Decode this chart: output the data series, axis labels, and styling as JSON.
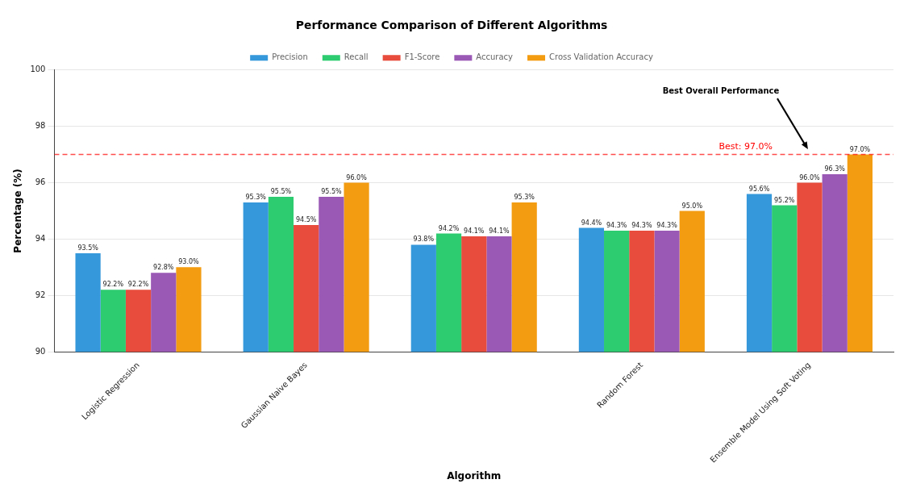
{
  "chart_data": {
    "type": "bar",
    "title": "Performance Comparison of Different Algorithms",
    "xlabel": "Algorithm",
    "ylabel": "Percentage (%)",
    "categories": [
      "Logistic Regression",
      "Gaussian Naive Bayes",
      null,
      "Random Forest",
      "Ensemble Model Using Soft Voting"
    ],
    "series": [
      {
        "name": "Precision",
        "color": "#3498db",
        "values": [
          93.5,
          95.3,
          93.8,
          94.4,
          95.6
        ],
        "value_labels": [
          "93.5%",
          "95.3%",
          "93.8%",
          "94.4%",
          "95.6%"
        ]
      },
      {
        "name": "Recall",
        "color": "#2ecc71",
        "values": [
          92.2,
          95.5,
          94.2,
          94.3,
          95.2
        ],
        "value_labels": [
          "92.2%",
          "95.5%",
          "94.2%",
          "94.3%",
          "95.2%"
        ]
      },
      {
        "name": "F1-Score",
        "color": "#e74c3c",
        "values": [
          92.2,
          94.5,
          94.1,
          94.3,
          96.0
        ],
        "value_labels": [
          "92.2%",
          "94.5%",
          "94.1%",
          "94.3%",
          "96.0%"
        ]
      },
      {
        "name": "Accuracy",
        "color": "#9b59b6",
        "values": [
          92.8,
          95.5,
          94.1,
          94.3,
          96.3
        ],
        "value_labels": [
          "92.8%",
          "95.5%",
          "94.1%",
          "94.3%",
          "96.3%"
        ]
      },
      {
        "name": "Cross Validation Accuracy",
        "color": "#f39c12",
        "values": [
          93.0,
          96.0,
          95.3,
          95.0,
          97.0
        ],
        "value_labels": [
          "93.0%",
          "96.0%",
          "95.3%",
          "95.0%",
          "97.0%"
        ]
      }
    ],
    "ylim": [
      90,
      100
    ],
    "yticks": [
      90,
      92,
      94,
      96,
      98,
      100
    ],
    "grid": "y",
    "legend": "top",
    "ref_lines": [
      {
        "axis": "y",
        "value": 97.0,
        "label": "Best: 97.0%",
        "color": "#ff0000",
        "line_style": "dashed"
      }
    ],
    "annotations": [
      {
        "text": "Best Overall Performance",
        "x": "Ensemble Model Using Soft Voting",
        "y": 97.1
      }
    ]
  }
}
